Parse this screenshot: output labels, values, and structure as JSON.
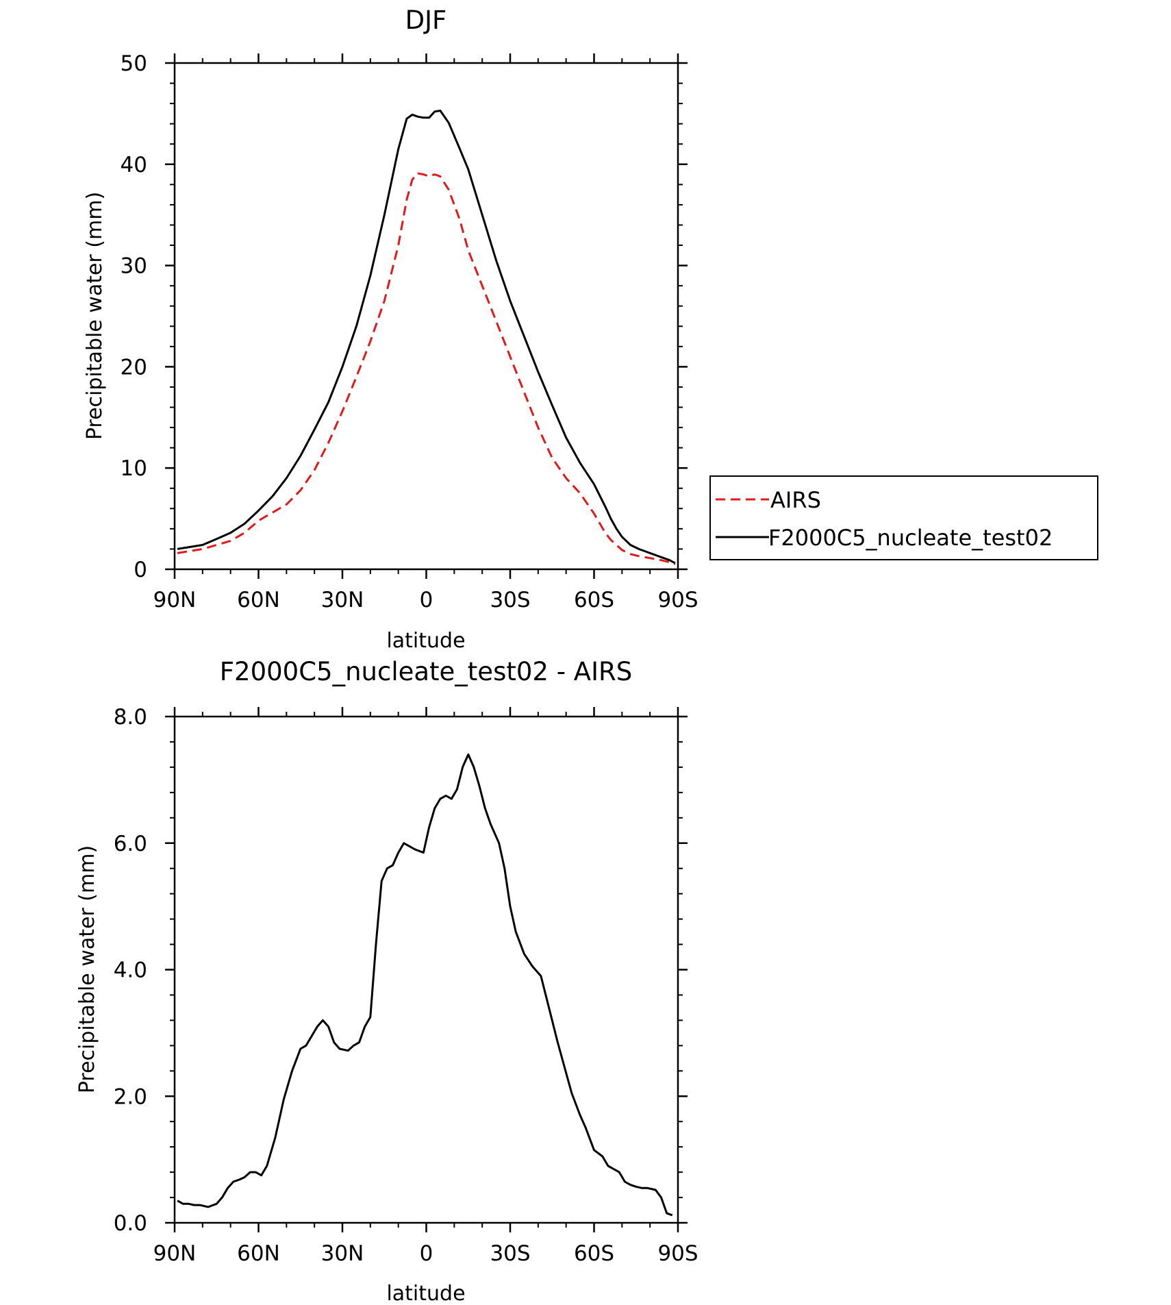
{
  "chart_data": [
    {
      "type": "line",
      "title": "DJF",
      "xlabel": "latitude",
      "ylabel": "Precipitable water (mm)",
      "xlim": [
        90,
        -90
      ],
      "ylim": [
        0,
        50
      ],
      "xtick_values": [
        90,
        60,
        30,
        0,
        -30,
        -60,
        -90
      ],
      "xtick_labels": [
        "90N",
        "60N",
        "30N",
        "0",
        "30S",
        "60S",
        "90S"
      ],
      "ytick_values": [
        0,
        10,
        20,
        30,
        40,
        50
      ],
      "ytick_labels": [
        "0",
        "10",
        "20",
        "30",
        "40",
        "50"
      ],
      "legend_position": "right",
      "series": [
        {
          "name": "AIRS",
          "color": "#e0191b",
          "style": "dashed",
          "x": [
            89,
            80,
            75,
            70,
            65,
            60,
            55,
            50,
            45,
            40,
            35,
            30,
            25,
            20,
            15,
            10,
            7,
            5,
            3,
            1,
            -1,
            -3,
            -5,
            -8,
            -12,
            -15,
            -20,
            -25,
            -30,
            -35,
            -40,
            -45,
            -50,
            -55,
            -60,
            -64,
            -66,
            -68,
            -70,
            -73,
            -76,
            -80,
            -84,
            -87,
            -89
          ],
          "y": [
            1.6,
            2.0,
            2.4,
            2.8,
            3.6,
            4.8,
            5.6,
            6.4,
            7.8,
            9.8,
            12.5,
            15.6,
            19.0,
            22.5,
            26.5,
            32.0,
            36.5,
            38.5,
            39.1,
            39.0,
            38.8,
            39.0,
            38.8,
            37.5,
            34.5,
            31.5,
            28.0,
            24.5,
            21.0,
            17.5,
            14.0,
            11.0,
            9.0,
            7.5,
            5.5,
            3.6,
            2.9,
            2.4,
            1.9,
            1.5,
            1.3,
            1.1,
            0.9,
            0.7,
            0.5
          ]
        },
        {
          "name": "F2000C5_nucleate_test02",
          "color": "#000000",
          "style": "solid",
          "x": [
            89,
            80,
            75,
            70,
            65,
            60,
            55,
            50,
            45,
            40,
            35,
            30,
            25,
            20,
            15,
            10,
            7,
            5,
            3,
            1,
            -1,
            -3,
            -5,
            -8,
            -12,
            -15,
            -20,
            -25,
            -30,
            -35,
            -40,
            -45,
            -50,
            -55,
            -60,
            -64,
            -66,
            -68,
            -70,
            -73,
            -76,
            -80,
            -84,
            -87,
            -89
          ],
          "y": [
            2.0,
            2.4,
            3.0,
            3.6,
            4.5,
            5.8,
            7.2,
            9.0,
            11.2,
            13.8,
            16.5,
            20.0,
            24.0,
            29.0,
            35.0,
            41.5,
            44.5,
            44.9,
            44.7,
            44.6,
            44.6,
            45.2,
            45.3,
            44.1,
            41.5,
            39.5,
            35.0,
            30.5,
            26.5,
            23.0,
            19.5,
            16.2,
            13.0,
            10.5,
            8.4,
            6.2,
            5.0,
            4.0,
            3.2,
            2.4,
            2.0,
            1.6,
            1.2,
            0.9,
            0.6
          ]
        }
      ]
    },
    {
      "type": "line",
      "title": "F2000C5_nucleate_test02 - AIRS",
      "xlabel": "latitude",
      "ylabel": "Precipitable water (mm)",
      "xlim": [
        90,
        -90
      ],
      "ylim": [
        0,
        8
      ],
      "xtick_values": [
        90,
        60,
        30,
        0,
        -30,
        -60,
        -90
      ],
      "xtick_labels": [
        "90N",
        "60N",
        "30N",
        "0",
        "30S",
        "60S",
        "90S"
      ],
      "ytick_values": [
        0,
        2,
        4,
        6,
        8
      ],
      "ytick_labels": [
        "0.0",
        "2.0",
        "4.0",
        "6.0",
        "8.0"
      ],
      "series": [
        {
          "name": "F2000C5_nucleate_test02 - AIRS",
          "color": "#000000",
          "style": "solid",
          "x": [
            89,
            87,
            85,
            83,
            81,
            78,
            75,
            73,
            71,
            69,
            67,
            65,
            63,
            61,
            59,
            57,
            54,
            51,
            48,
            45,
            43,
            41,
            39,
            37,
            35,
            33,
            31,
            28,
            26,
            24,
            22,
            20,
            18,
            16,
            14,
            12,
            10,
            8,
            6,
            4,
            1,
            -1,
            -3,
            -5,
            -7,
            -9,
            -11,
            -13,
            -15,
            -17,
            -19,
            -21,
            -23,
            -26,
            -28,
            -30,
            -32,
            -35,
            -38,
            -41,
            -43,
            -47,
            -52,
            -55,
            -57,
            -60,
            -63,
            -65,
            -67,
            -69,
            -71,
            -73,
            -75,
            -77,
            -79,
            -82,
            -84,
            -86,
            -88
          ],
          "y": [
            0.35,
            0.3,
            0.3,
            0.28,
            0.28,
            0.25,
            0.3,
            0.4,
            0.55,
            0.65,
            0.68,
            0.72,
            0.8,
            0.8,
            0.75,
            0.9,
            1.35,
            1.95,
            2.4,
            2.75,
            2.8,
            2.95,
            3.1,
            3.2,
            3.1,
            2.85,
            2.75,
            2.72,
            2.8,
            2.85,
            3.1,
            3.25,
            4.4,
            5.4,
            5.6,
            5.65,
            5.85,
            6.0,
            5.95,
            5.9,
            5.85,
            6.25,
            6.55,
            6.7,
            6.75,
            6.7,
            6.85,
            7.2,
            7.4,
            7.2,
            6.9,
            6.55,
            6.3,
            6.0,
            5.6,
            5.0,
            4.6,
            4.25,
            4.05,
            3.9,
            3.55,
            2.85,
            2.05,
            1.7,
            1.5,
            1.15,
            1.05,
            0.9,
            0.85,
            0.8,
            0.65,
            0.6,
            0.57,
            0.55,
            0.55,
            0.52,
            0.4,
            0.15,
            0.12
          ]
        }
      ]
    }
  ]
}
